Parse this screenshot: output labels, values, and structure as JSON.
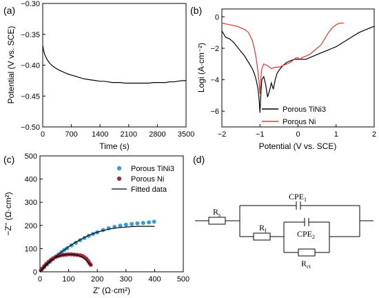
{
  "panels": {
    "a": {
      "label": "(a)"
    },
    "b": {
      "label": "(b)"
    },
    "c": {
      "label": "(c)"
    },
    "d": {
      "label": "(d)"
    }
  },
  "chart_data": [
    {
      "panel": "a",
      "type": "line",
      "xlabel": "Time (s)",
      "ylabel": "Potential (V vs. SCE)",
      "xlim": [
        0,
        3500
      ],
      "ylim": [
        -0.5,
        -0.3
      ],
      "xticks": [
        "0",
        "700",
        "1400",
        "2100",
        "2800",
        "3500"
      ],
      "yticks": [
        "−0.50",
        "−0.45",
        "−0.40",
        "−0.35",
        "−0.30"
      ],
      "color": "#000000",
      "series": [
        {
          "x": [
            0,
            20,
            50,
            100,
            150,
            200,
            300,
            400,
            500,
            600,
            700,
            800,
            900,
            1000,
            1100,
            1200,
            1300,
            1400,
            1500,
            1600,
            1700,
            1800,
            1900,
            2000,
            2100,
            2200,
            2300,
            2400,
            2500,
            2600,
            2700,
            2800,
            2900,
            3000,
            3100,
            3200,
            3300,
            3400,
            3500
          ],
          "y": [
            -0.368,
            -0.376,
            -0.383,
            -0.39,
            -0.395,
            -0.399,
            -0.404,
            -0.408,
            -0.411,
            -0.414,
            -0.416,
            -0.418,
            -0.42,
            -0.422,
            -0.423,
            -0.424,
            -0.425,
            -0.426,
            -0.426,
            -0.427,
            -0.428,
            -0.428,
            -0.428,
            -0.429,
            -0.429,
            -0.429,
            -0.429,
            -0.429,
            -0.429,
            -0.429,
            -0.428,
            -0.428,
            -0.428,
            -0.428,
            -0.427,
            -0.427,
            -0.426,
            -0.425,
            -0.425
          ]
        }
      ]
    },
    {
      "panel": "b",
      "type": "line",
      "xlabel": "Potential (V vs. SCE)",
      "ylabel": "Logi (A·cm⁻²)",
      "xlim": [
        -2,
        2
      ],
      "ylim": [
        -7,
        0.5
      ],
      "xticks": [
        "−2",
        "−1",
        "0",
        "1",
        "2"
      ],
      "yticks": [
        "−6",
        "−4",
        "−2",
        "0"
      ],
      "legend_position": "bottom-right",
      "series": [
        {
          "name": "Porous TiNi3",
          "color": "#000000",
          "x": [
            -2.0,
            -1.9,
            -1.8,
            -1.7,
            -1.6,
            -1.5,
            -1.4,
            -1.3,
            -1.2,
            -1.15,
            -1.1,
            -1.05,
            -1.02,
            -1.0,
            -0.98,
            -0.95,
            -0.9,
            -0.85,
            -0.8,
            -0.75,
            -0.7,
            -0.65,
            -0.6,
            -0.55,
            -0.5,
            -0.4,
            -0.3,
            -0.2,
            -0.1,
            0.0,
            0.1,
            0.2,
            0.3,
            0.4,
            0.5,
            0.6,
            0.7,
            0.8,
            0.9,
            1.0,
            1.2,
            1.4,
            1.6,
            1.8,
            2.0
          ],
          "y": [
            -0.9,
            -1.3,
            -1.4,
            -1.6,
            -1.9,
            -2.2,
            -2.5,
            -2.9,
            -3.3,
            -3.6,
            -4.0,
            -4.6,
            -5.3,
            -6.1,
            -5.0,
            -4.0,
            -3.8,
            -4.3,
            -5.1,
            -4.7,
            -4.2,
            -4.6,
            -4.0,
            -3.6,
            -3.4,
            -3.1,
            -2.9,
            -2.8,
            -2.7,
            -2.7,
            -2.7,
            -2.7,
            -2.6,
            -2.5,
            -2.4,
            -2.3,
            -2.2,
            -2.1,
            -2.0,
            -1.9,
            -1.6,
            -1.3,
            -1.0,
            -0.8,
            -0.6
          ]
        },
        {
          "name": "Porous Ni",
          "color": "#e8312f",
          "x": [
            -2.0,
            -1.9,
            -1.8,
            -1.7,
            -1.6,
            -1.5,
            -1.4,
            -1.3,
            -1.2,
            -1.15,
            -1.1,
            -1.05,
            -1.02,
            -1.0,
            -0.98,
            -0.95,
            -0.9,
            -0.8,
            -0.7,
            -0.6,
            -0.5,
            -0.4,
            -0.3,
            -0.2,
            -0.1,
            -0.05,
            0.0,
            0.05,
            0.1,
            0.2,
            0.3,
            0.4,
            0.5,
            0.6,
            0.7,
            0.8,
            0.9,
            1.0,
            1.1,
            1.2
          ],
          "y": [
            -0.4,
            -0.45,
            -0.5,
            -0.55,
            -0.6,
            -0.7,
            -0.8,
            -1.0,
            -1.5,
            -2.0,
            -2.6,
            -3.5,
            -4.2,
            -4.9,
            -4.0,
            -3.3,
            -3.0,
            -3.1,
            -3.3,
            -3.2,
            -3.2,
            -3.1,
            -3.0,
            -2.9,
            -2.7,
            -2.6,
            -2.6,
            -2.7,
            -2.6,
            -2.5,
            -2.4,
            -2.2,
            -2.0,
            -1.8,
            -1.4,
            -1.0,
            -0.7,
            -0.5,
            -0.4,
            -0.4
          ]
        }
      ]
    },
    {
      "panel": "c",
      "type": "scatter",
      "xlabel": "Z' (Ω·cm²)",
      "ylabel": "−Z'' (Ω·cm²)",
      "xlim": [
        0,
        500
      ],
      "ylim": [
        0,
        500
      ],
      "xticks": [
        "0",
        "100",
        "200",
        "300",
        "400",
        "500"
      ],
      "yticks": [
        "0",
        "100",
        "200",
        "300",
        "400",
        "500"
      ],
      "legend_position": "top-right",
      "series": [
        {
          "name": "Porous TiNi3",
          "color": "#3a9dd4",
          "x": [
            5,
            15,
            25,
            35,
            45,
            55,
            65,
            75,
            85,
            95,
            110,
            125,
            140,
            155,
            170,
            185,
            200,
            220,
            240,
            260,
            280,
            300,
            320,
            340,
            360,
            380,
            398
          ],
          "y": [
            8,
            20,
            32,
            43,
            54,
            65,
            75,
            85,
            94,
            102,
            114,
            125,
            136,
            146,
            155,
            163,
            170,
            180,
            188,
            194,
            199,
            203,
            206,
            209,
            211,
            213,
            216
          ]
        },
        {
          "name": "Porous Ni",
          "color": "#a52a3a",
          "x": [
            3,
            8,
            15,
            22,
            30,
            38,
            46,
            55,
            64,
            73,
            82,
            91,
            100,
            110,
            120,
            130,
            140,
            148,
            155,
            162,
            168,
            173,
            177
          ],
          "y": [
            6,
            14,
            24,
            34,
            43,
            51,
            58,
            64,
            68,
            71,
            73,
            74,
            75,
            75,
            74,
            73,
            71,
            68,
            63,
            56,
            47,
            37,
            30
          ]
        },
        {
          "name": "Fitted data",
          "type": "line",
          "color": "#000000",
          "x": [
            0,
            20,
            40,
            60,
            80,
            100,
            120,
            140,
            160,
            180,
            200,
            220,
            240,
            260,
            280,
            300,
            320,
            340,
            360,
            380,
            400
          ],
          "y": [
            0,
            25,
            49,
            70,
            90,
            108,
            124,
            138,
            151,
            162,
            171,
            178,
            184,
            188,
            191,
            193,
            195,
            196,
            196,
            196,
            196
          ]
        },
        {
          "name": "Fitted data",
          "type": "line",
          "color": "#000000",
          "x": [
            0,
            10,
            20,
            30,
            40,
            50,
            60,
            70,
            80,
            90,
            100,
            110,
            120,
            130,
            140,
            150,
            160,
            170,
            180
          ],
          "y": [
            0,
            17,
            31,
            42,
            52,
            59,
            65,
            69,
            72,
            74,
            75,
            75,
            74,
            72,
            68,
            62,
            52,
            38,
            28
          ]
        }
      ]
    },
    {
      "panel": "d",
      "type": "circuit",
      "labels": {
        "rs": "R",
        "rs_sub": "s",
        "rf": "R",
        "rf_sub": "f",
        "cpe1": "CPE",
        "cpe1_sub": "1",
        "cpe2": "CPE",
        "cpe2_sub": "2",
        "rct": "R",
        "rct_sub": "ct"
      }
    }
  ]
}
